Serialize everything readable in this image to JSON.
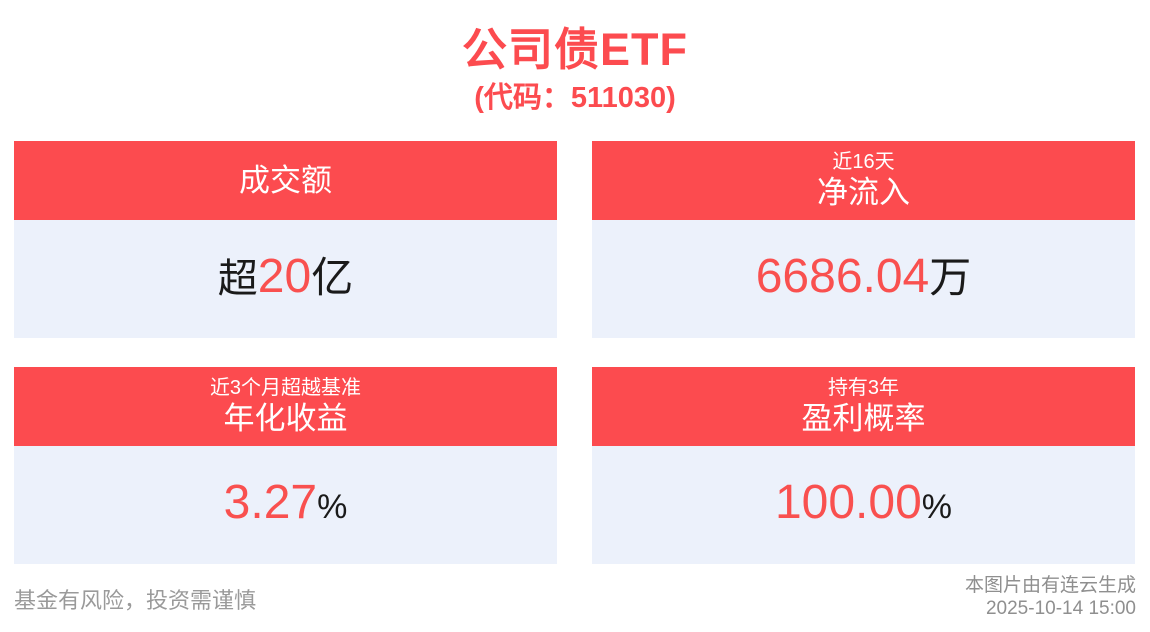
{
  "header": {
    "title": "公司债ETF",
    "subtitle": "(代码：511030)"
  },
  "cards": [
    {
      "name": "turnover",
      "header_small": "",
      "header_main": "成交额",
      "value_prefix": "超",
      "value": "20",
      "value_suffix": "亿"
    },
    {
      "name": "net-inflow",
      "header_small": "近16天",
      "header_main": "净流入",
      "value_prefix": "",
      "value": "6686.04",
      "value_suffix": "万"
    },
    {
      "name": "annualized-return",
      "header_small": "近3个月超越基准",
      "header_main": "年化收益",
      "value_prefix": "",
      "value": "3.27",
      "value_suffix": "%"
    },
    {
      "name": "profit-probability",
      "header_small": "持有3年",
      "header_main": "盈利概率",
      "value_prefix": "",
      "value": "100.00",
      "value_suffix": "%"
    }
  ],
  "footer": {
    "disclaimer": "基金有风险，投资需谨慎",
    "generator": "本图片由有连云生成",
    "timestamp": "2025-10-14 15:00"
  },
  "colors": {
    "accent_red": "#fc4b4f",
    "value_red": "#f9504f",
    "card_body_bg": "#ecf1fb",
    "footer_gray": "#9a9a9a"
  }
}
